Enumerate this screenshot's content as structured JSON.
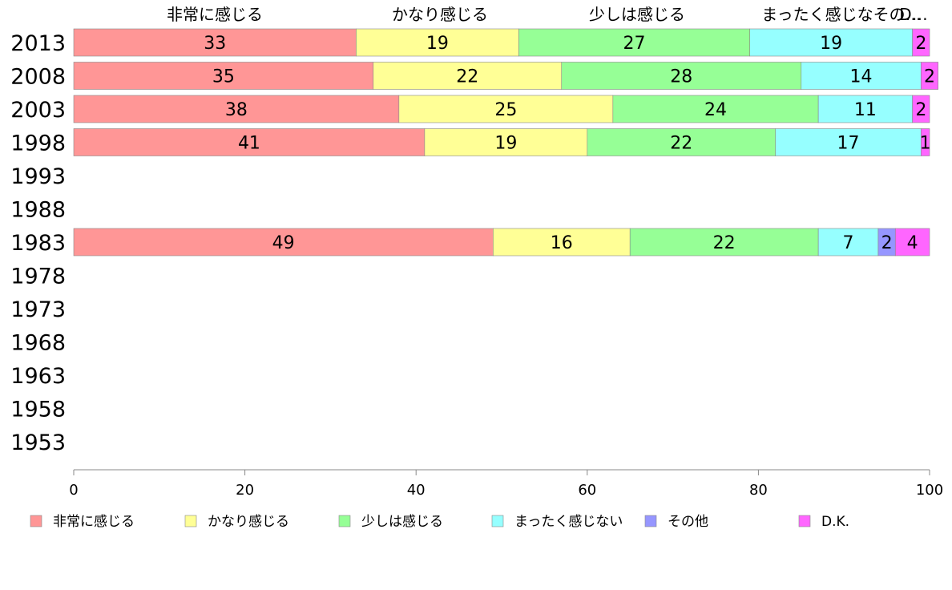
{
  "chart_data": {
    "type": "bar",
    "orientation": "horizontal",
    "stacked": true,
    "categories": [
      "2013",
      "2008",
      "2003",
      "1998",
      "1993",
      "1988",
      "1983",
      "1978",
      "1973",
      "1968",
      "1963",
      "1958",
      "1953"
    ],
    "series": [
      {
        "name": "非常に感じる",
        "color": "#FF9696",
        "values": [
          33,
          35,
          38,
          41,
          null,
          null,
          49,
          null,
          null,
          null,
          null,
          null,
          null
        ]
      },
      {
        "name": "かなり感じる",
        "color": "#FFFF96",
        "values": [
          19,
          22,
          25,
          19,
          null,
          null,
          16,
          null,
          null,
          null,
          null,
          null,
          null
        ]
      },
      {
        "name": "少しは感じる",
        "color": "#96FF96",
        "values": [
          27,
          28,
          24,
          22,
          null,
          null,
          22,
          null,
          null,
          null,
          null,
          null,
          null
        ]
      },
      {
        "name": "まったく感じない",
        "color": "#96FFFF",
        "values": [
          19,
          14,
          11,
          17,
          null,
          null,
          7,
          null,
          null,
          null,
          null,
          null,
          null
        ]
      },
      {
        "name": "その他",
        "color": "#9696FF",
        "values": [
          0,
          0,
          0,
          0,
          null,
          null,
          2,
          null,
          null,
          null,
          null,
          null,
          null
        ]
      },
      {
        "name": "D.K.",
        "color": "#FF66FF",
        "values": [
          2,
          2,
          2,
          1,
          null,
          null,
          4,
          null,
          null,
          null,
          null,
          null,
          null
        ]
      }
    ],
    "top_labels": [
      "非常に感じる",
      "かなり感じる",
      "少しは感じる",
      "まったく感じなその…",
      "D…"
    ],
    "xlim": [
      0,
      100
    ],
    "xticks": [
      "0",
      "20",
      "40",
      "60",
      "80",
      "100"
    ],
    "grid": false,
    "legend_position": "bottom"
  }
}
